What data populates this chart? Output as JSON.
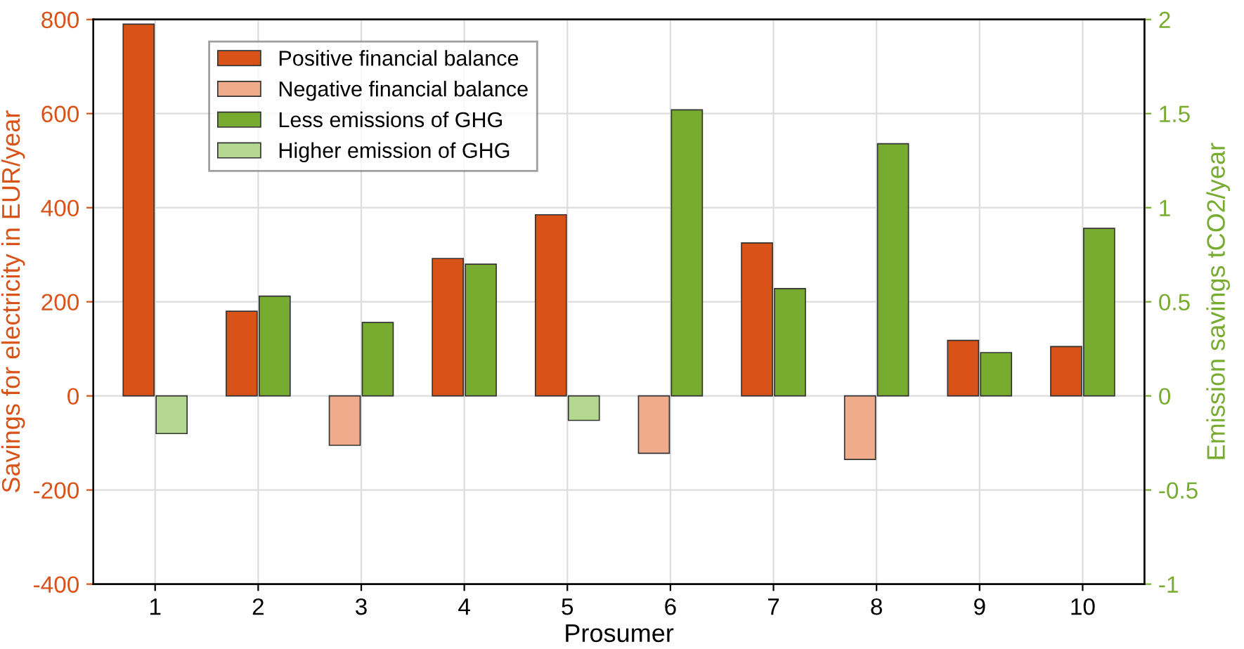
{
  "chart_data": {
    "type": "bar",
    "xlabel": "Prosumer",
    "ylabel": "Savings for electricity in EUR/year",
    "y2label": "Emission savings tCO2/year",
    "categories": [
      "1",
      "2",
      "3",
      "4",
      "5",
      "6",
      "7",
      "8",
      "9",
      "10"
    ],
    "series": [
      {
        "name": "Positive financial balance",
        "color": "#d95319",
        "values": [
          790,
          180,
          null,
          292,
          385,
          null,
          325,
          null,
          118,
          105
        ]
      },
      {
        "name": "Negative financial balance",
        "color": "#f0aa8c",
        "values": [
          null,
          null,
          -105,
          null,
          null,
          -122,
          null,
          -135,
          null,
          null
        ]
      },
      {
        "name": "Less emissions of GHG",
        "color": "#77ac30",
        "axis": "y2",
        "values": [
          null,
          0.53,
          0.39,
          0.7,
          null,
          1.52,
          0.57,
          1.34,
          0.23,
          0.89
        ]
      },
      {
        "name": "Higher emission of GHG",
        "color": "#b5d890",
        "axis": "y2",
        "values": [
          -0.2,
          null,
          null,
          null,
          -0.13,
          null,
          null,
          null,
          null,
          null
        ]
      }
    ],
    "ylim": [
      -400,
      800
    ],
    "yticks": [
      -400,
      -200,
      0,
      200,
      400,
      600,
      800
    ],
    "y2lim": [
      -1,
      2
    ],
    "y2ticks": [
      -1,
      -0.5,
      0,
      0.5,
      1,
      1.5,
      2
    ],
    "grid": true,
    "legend": "top left"
  }
}
